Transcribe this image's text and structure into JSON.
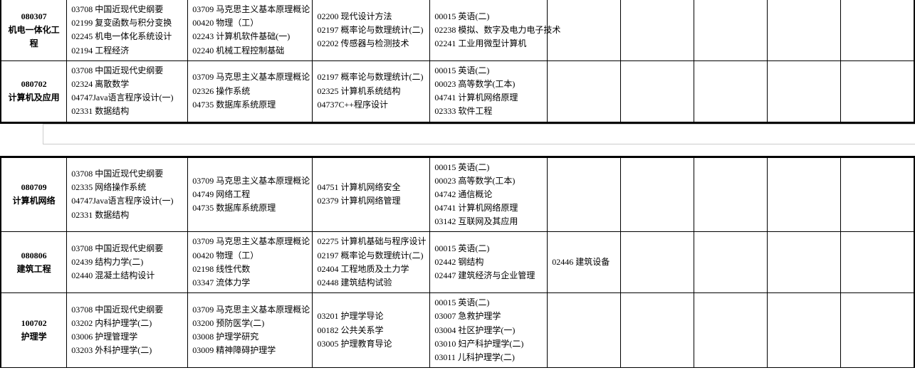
{
  "table1": {
    "rows": [
      {
        "code": "080307",
        "name": "机电一体化工程",
        "cells": [
          [
            "03708 中国近现代史纲要",
            "02199 复变函数与积分变换",
            "02245 机电一体化系统设计",
            "02194 工程经济"
          ],
          [
            "03709 马克思主义基本原理概论",
            "00420 物理（工）",
            "02243 计算机软件基础(一)",
            "02240 机械工程控制基础"
          ],
          [
            "02200 现代设计方法",
            "02197 概率论与数理统计(二)",
            "02202 传感器与检测技术"
          ],
          [
            "00015 英语(二)",
            "02238 模拟、数字及电力电子技术",
            "02241 工业用微型计算机"
          ],
          [],
          [],
          [],
          [],
          []
        ]
      },
      {
        "code": "080702",
        "name": "计算机及应用",
        "cells": [
          [
            "03708 中国近现代史纲要",
            "02324 离散数学",
            "04747Java语言程序设计(一)",
            "02331 数据结构"
          ],
          [
            "03709 马克思主义基本原理概论",
            "02326 操作系统",
            "04735 数据库系统原理"
          ],
          [
            "02197 概率论与数理统计(二)",
            "02325 计算机系统结构",
            "04737C++程序设计"
          ],
          [
            "00015 英语(二)",
            "00023 高等数学(工本)",
            "04741 计算机网络原理",
            "02333 软件工程"
          ],
          [],
          [],
          [],
          [],
          []
        ]
      }
    ]
  },
  "table2": {
    "rows": [
      {
        "code": "080709",
        "name": "计算机网络",
        "cells": [
          [
            "03708 中国近现代史纲要",
            "02335 网络操作系统",
            "04747Java语言程序设计(一)",
            "02331 数据结构"
          ],
          [
            "03709 马克思主义基本原理概论",
            "04749 网络工程",
            "04735 数据库系统原理"
          ],
          [
            "04751 计算机网络安全",
            "02379 计算机网络管理"
          ],
          [
            "00015 英语(二)",
            "00023 高等数学(工本)",
            "04742 通信概论",
            "04741 计算机网络原理",
            "03142 互联网及其应用"
          ],
          [],
          [],
          [],
          [],
          []
        ]
      },
      {
        "code": "080806",
        "name": "建筑工程",
        "cells": [
          [
            "03708 中国近现代史纲要",
            "02439 结构力学(二)",
            "02440 混凝土结构设计"
          ],
          [
            "03709 马克思主义基本原理概论",
            "00420 物理（工）",
            "02198 线性代数",
            "03347 流体力学"
          ],
          [
            "02275 计算机基础与程序设计",
            "02197 概率论与数理统计(二)",
            "02404 工程地质及土力学",
            "02448 建筑结构试验"
          ],
          [
            "00015 英语(二)",
            "02442 钢结构",
            "02447 建筑经济与企业管理"
          ],
          [
            "02446 建筑设备"
          ],
          [],
          [],
          [],
          []
        ]
      },
      {
        "code": "100702",
        "name": "护理学",
        "cells": [
          [
            "03708 中国近现代史纲要",
            "03202 内科护理学(二)",
            "03006 护理管理学",
            "03203 外科护理学(二)"
          ],
          [
            "03709 马克思主义基本原理概论",
            "03200 预防医学(二)",
            "03008 护理学研究",
            "03009 精神障碍护理学"
          ],
          [
            "03201 护理学导论",
            "00182 公共关系学",
            "03005 护理教育导论"
          ],
          [
            "00015 英语(二)",
            "03007 急救护理学",
            "03004 社区护理学(一)",
            "03010 妇产科护理学(二)",
            "03011 儿科护理学(二)"
          ],
          [],
          [],
          [],
          [],
          []
        ]
      }
    ]
  }
}
